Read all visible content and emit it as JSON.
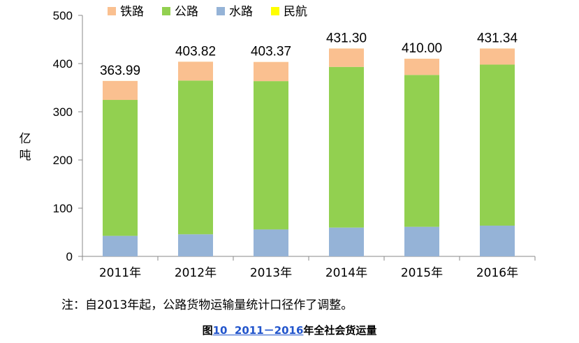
{
  "chart_data": {
    "type": "bar",
    "stacked": true,
    "categories": [
      "2011年",
      "2012年",
      "2013年",
      "2014年",
      "2015年",
      "2016年"
    ],
    "series": [
      {
        "name": "铁路",
        "color": "#fac090",
        "values": [
          39.3,
          39.0,
          39.7,
          38.1,
          33.6,
          33.3
        ]
      },
      {
        "name": "公路",
        "color": "#92d050",
        "values": [
          282.0,
          318.9,
          307.7,
          333.3,
          315.0,
          334.1
        ]
      },
      {
        "name": "水路",
        "color": "#95b3d7",
        "values": [
          42.6,
          45.9,
          55.9,
          59.8,
          61.4,
          63.8
        ]
      },
      {
        "name": "民航",
        "color": "#ffff00",
        "values": [
          0.06,
          0.05,
          0.06,
          0.06,
          0.06,
          0.07
        ]
      }
    ],
    "totals": [
      "363.99",
      "403.82",
      "403.37",
      "431.30",
      "410.00",
      "431.34"
    ],
    "ylabel": "亿吨",
    "ylim": [
      0,
      500
    ],
    "yticks": [
      0,
      100,
      200,
      300,
      400,
      500
    ],
    "legend_position": "top",
    "grid": false
  },
  "note": "注：自2013年起，公路货物运输量统计口径作了调整。",
  "caption": {
    "prefix": "图",
    "number": "10",
    "range": "2011－2016",
    "title": "年全社会货运量"
  }
}
